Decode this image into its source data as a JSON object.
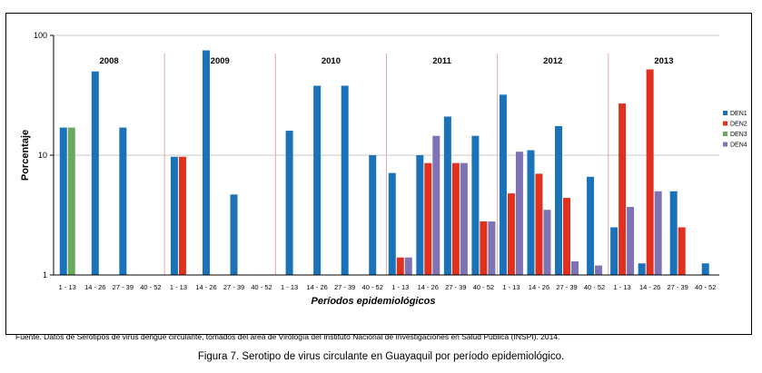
{
  "chart_data": {
    "type": "bar",
    "ylabel": "Porcentaje",
    "xlabel": "Períodos epidemiológicos",
    "yscale": "log",
    "ylim": [
      1,
      100
    ],
    "yticks": [
      "1",
      "10",
      "100"
    ],
    "grid": "horizontal",
    "legend_position": "right",
    "years": [
      "2008",
      "2009",
      "2010",
      "2011",
      "2012",
      "2013"
    ],
    "periods": [
      "1 - 13",
      "14 - 26",
      "27 - 39",
      "40 - 52"
    ],
    "series": [
      {
        "name": "DEN1",
        "color": "#1a73b8",
        "values": [
          17,
          50,
          17,
          null,
          9.7,
          75,
          4.7,
          null,
          16,
          38,
          38,
          10,
          7.1,
          10,
          21,
          14.5,
          32,
          11,
          17.5,
          6.6,
          2.5,
          1.25,
          5,
          1.25
        ]
      },
      {
        "name": "DEN2",
        "color": "#e0301e",
        "values": [
          null,
          null,
          null,
          null,
          9.7,
          null,
          null,
          null,
          null,
          null,
          null,
          null,
          1.4,
          8.6,
          8.6,
          2.8,
          4.8,
          7,
          4.4,
          null,
          27,
          52,
          2.5,
          null
        ]
      },
      {
        "name": "DEN3",
        "color": "#6aaa5e",
        "values": [
          17,
          null,
          null,
          null,
          null,
          null,
          null,
          null,
          null,
          null,
          null,
          null,
          null,
          null,
          null,
          null,
          null,
          null,
          null,
          null,
          null,
          null,
          null,
          null
        ]
      },
      {
        "name": "DEN4",
        "color": "#7e73b5",
        "values": [
          null,
          null,
          null,
          null,
          null,
          null,
          null,
          null,
          null,
          null,
          null,
          null,
          1.4,
          14.5,
          8.6,
          2.8,
          10.7,
          3.5,
          1.3,
          1.2,
          3.7,
          5,
          null,
          null
        ]
      }
    ]
  },
  "source_note": "Fuente. Datos de Serotipos de virus dengue circulante, tomados del área de Virología del Instituto Nacional de Investigaciones en Salud Pública (INSPI). 2014.",
  "caption": "Figura 7. Serotipo de virus circulante en Guayaquil por período epidemiológico."
}
